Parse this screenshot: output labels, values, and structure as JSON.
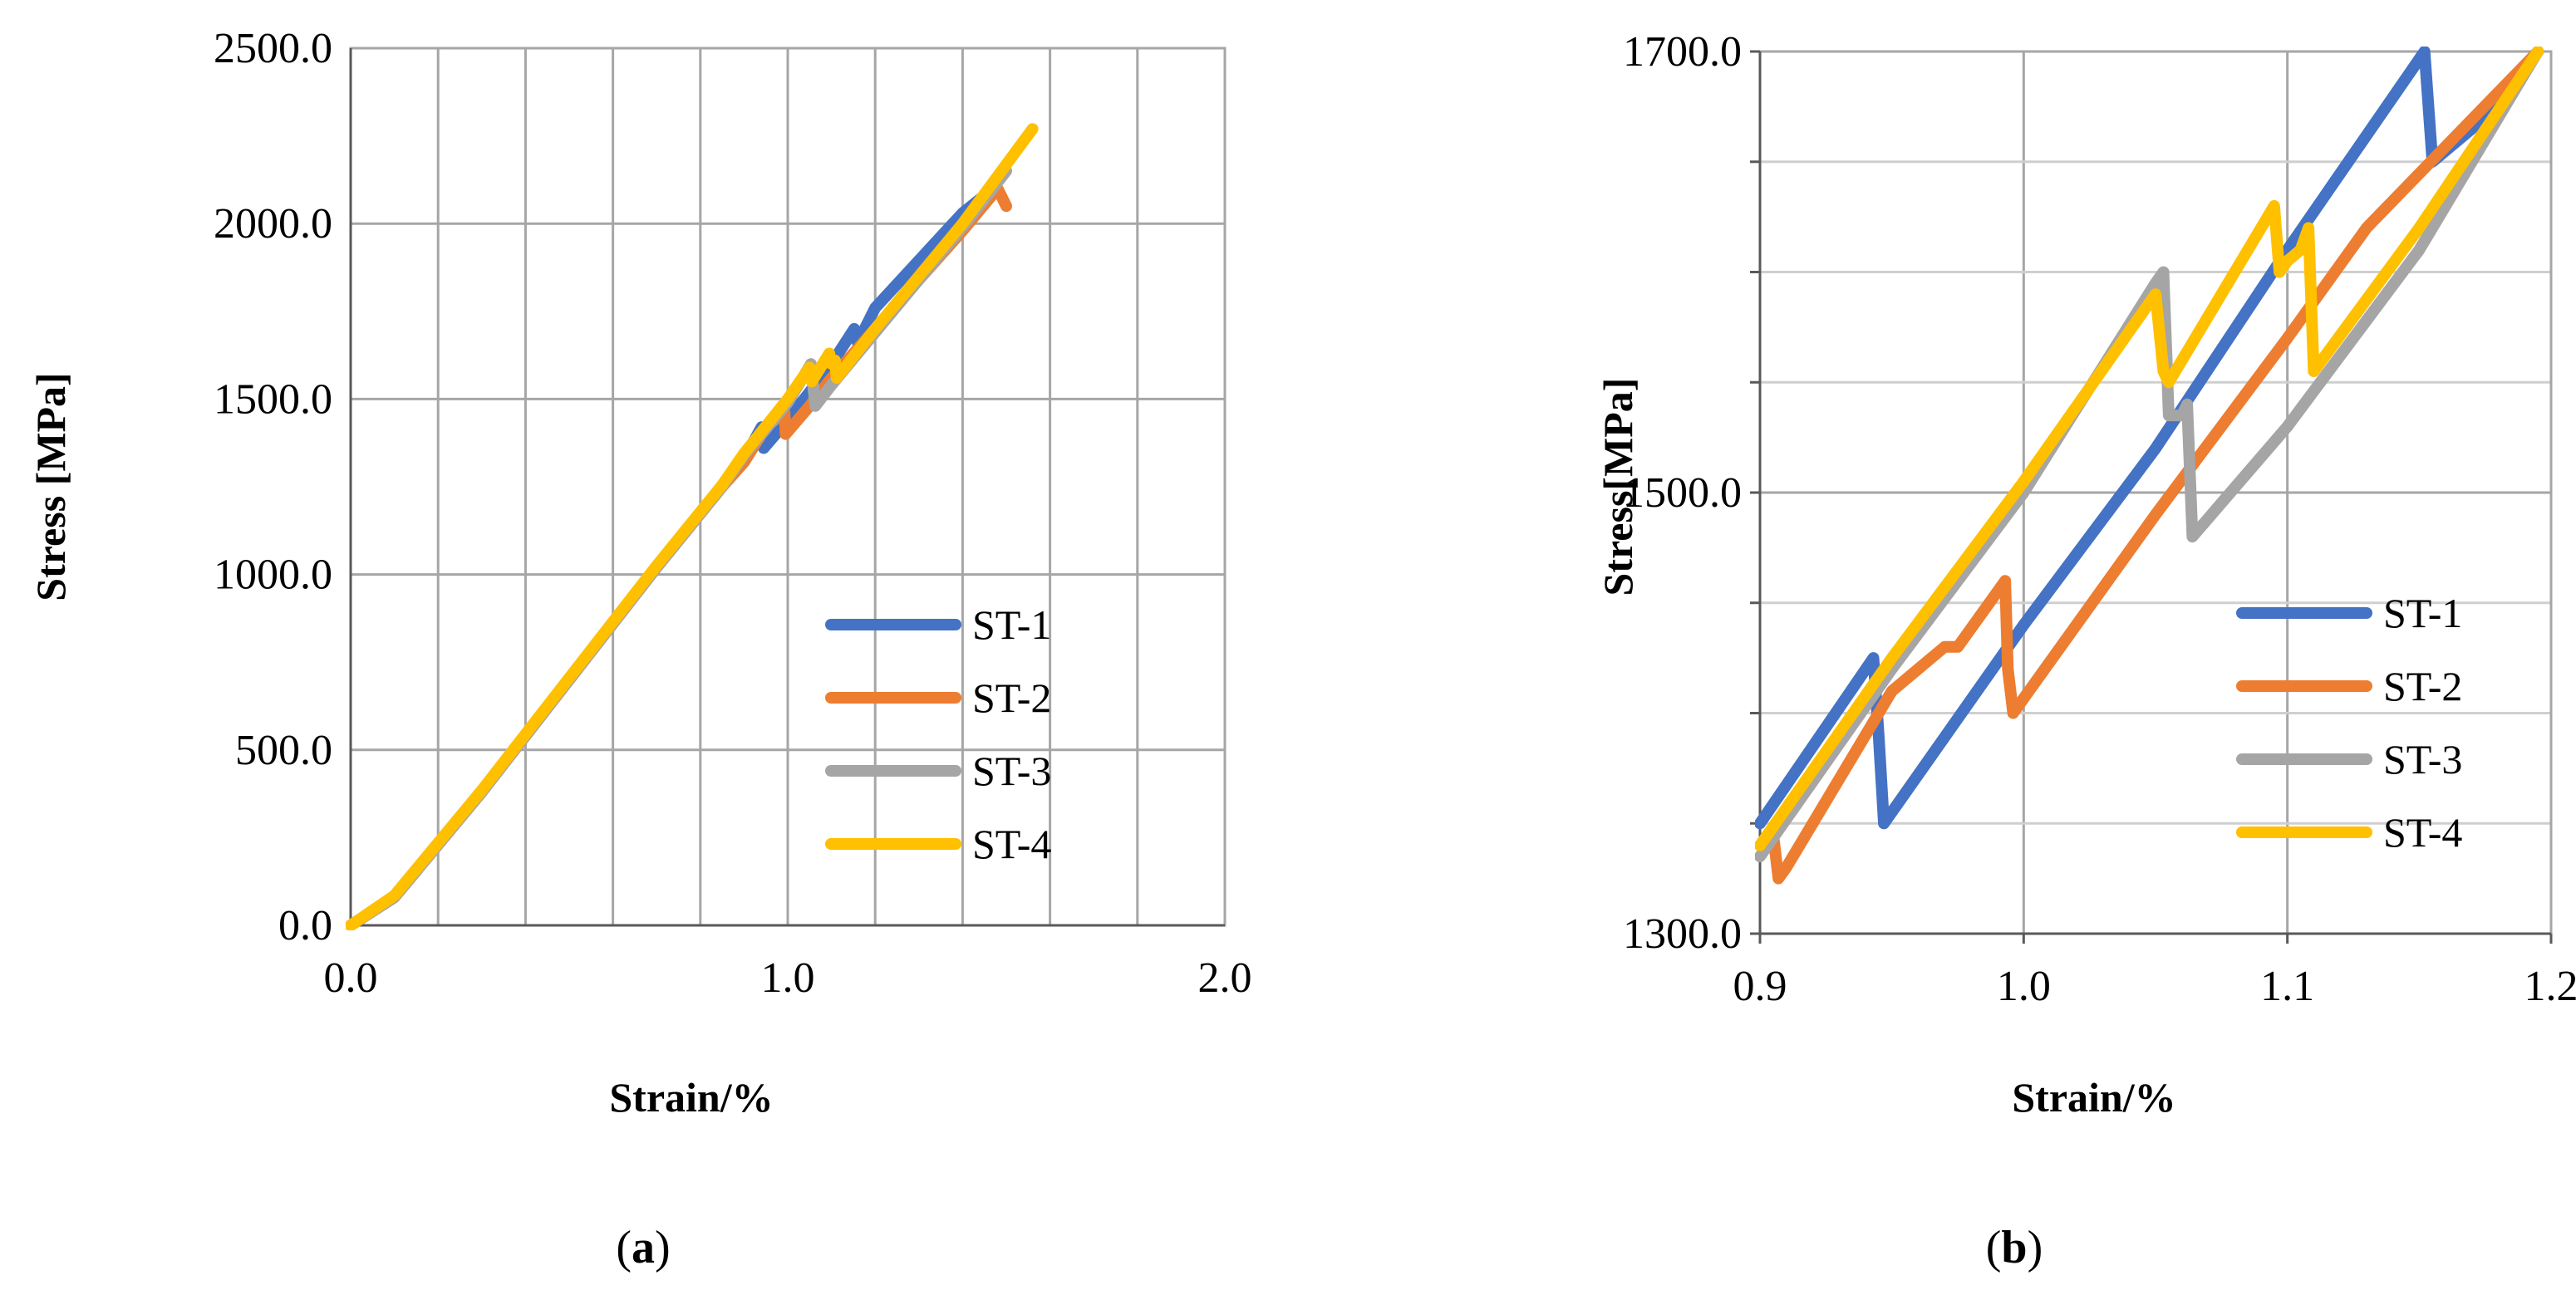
{
  "chart_data": [
    {
      "type": "line",
      "panel": "a",
      "caption": "a",
      "xlabel": "Strain/%",
      "ylabel": "Stress [MPa]",
      "xlim": [
        0.0,
        2.0
      ],
      "ylim": [
        0.0,
        2500.0
      ],
      "xticks": [
        "0.0",
        "1.0",
        "2.0"
      ],
      "yticks": [
        "0.0",
        "500.0",
        "1000.0",
        "1500.0",
        "2000.0",
        "2500.0"
      ],
      "x_minor_step": 0.2,
      "y_grid_step": 500.0,
      "legend_position": "bottom-right",
      "series": [
        {
          "name": "ST-1",
          "color": "#4472C4",
          "x": [
            0.0,
            0.1,
            0.3,
            0.5,
            0.7,
            0.85,
            0.9,
            0.94,
            0.945,
            1.0,
            1.05,
            1.1,
            1.152,
            1.16,
            1.2,
            1.4,
            1.47
          ],
          "y": [
            0,
            80,
            380,
            700,
            1020,
            1250,
            1330,
            1420,
            1360,
            1440,
            1520,
            1600,
            1700,
            1660,
            1760,
            2030,
            2100
          ]
        },
        {
          "name": "ST-2",
          "color": "#ED7D31",
          "x": [
            0.0,
            0.1,
            0.3,
            0.5,
            0.7,
            0.85,
            0.9,
            0.95,
            0.97,
            0.993,
            0.995,
            1.05,
            1.1,
            1.2,
            1.4,
            1.48,
            1.5
          ],
          "y": [
            0,
            80,
            380,
            700,
            1020,
            1250,
            1320,
            1420,
            1440,
            1460,
            1400,
            1480,
            1560,
            1700,
            1980,
            2100,
            2050
          ]
        },
        {
          "name": "ST-3",
          "color": "#A5A5A5",
          "x": [
            0.0,
            0.1,
            0.3,
            0.5,
            0.7,
            0.85,
            0.9,
            1.0,
            1.053,
            1.058,
            1.063,
            1.1,
            1.2,
            1.4,
            1.5
          ],
          "y": [
            0,
            80,
            380,
            700,
            1020,
            1250,
            1340,
            1490,
            1600,
            1540,
            1480,
            1540,
            1690,
            1990,
            2150
          ]
        },
        {
          "name": "ST-4",
          "color": "#FFC000",
          "x": [
            0.0,
            0.1,
            0.3,
            0.5,
            0.7,
            0.85,
            0.9,
            1.0,
            1.05,
            1.055,
            1.095,
            1.1,
            1.108,
            1.112,
            1.2,
            1.4,
            1.56
          ],
          "y": [
            0,
            85,
            385,
            705,
            1025,
            1255,
            1345,
            1500,
            1590,
            1550,
            1630,
            1600,
            1610,
            1560,
            1700,
            2000,
            2270
          ]
        }
      ]
    },
    {
      "type": "line",
      "panel": "b",
      "caption": "b",
      "xlabel": "Strain/%",
      "ylabel": "Stress[MPa]",
      "xlim": [
        0.9,
        1.2
      ],
      "ylim": [
        1300.0,
        1700.0
      ],
      "xticks": [
        "0.9",
        "1.0",
        "1.1",
        "1.2"
      ],
      "yticks": [
        "1300.0",
        "1500.0",
        "1700.0"
      ],
      "y_minor_step": 50.0,
      "legend_position": "bottom-right",
      "series": [
        {
          "name": "ST-1",
          "color": "#4472C4",
          "x": [
            0.9,
            0.943,
            0.945,
            0.947,
            1.0,
            1.05,
            1.1,
            1.152,
            1.155,
            1.17,
            1.195
          ],
          "y": [
            1350,
            1425,
            1390,
            1350,
            1440,
            1520,
            1610,
            1700,
            1650,
            1665,
            1700
          ]
        },
        {
          "name": "ST-2",
          "color": "#ED7D31",
          "x": [
            0.9,
            0.905,
            0.907,
            0.91,
            0.95,
            0.97,
            0.975,
            0.993,
            0.994,
            0.996,
            1.05,
            1.1,
            1.13,
            1.195
          ],
          "y": [
            1340,
            1345,
            1325,
            1330,
            1410,
            1430,
            1430,
            1460,
            1420,
            1400,
            1490,
            1570,
            1620,
            1700
          ]
        },
        {
          "name": "ST-3",
          "color": "#A5A5A5",
          "x": [
            0.9,
            0.95,
            1.0,
            1.05,
            1.053,
            1.055,
            1.06,
            1.062,
            1.064,
            1.1,
            1.15,
            1.195
          ],
          "y": [
            1335,
            1420,
            1500,
            1595,
            1600,
            1535,
            1535,
            1540,
            1480,
            1530,
            1610,
            1700
          ]
        },
        {
          "name": "ST-4",
          "color": "#FFC000",
          "x": [
            0.9,
            0.95,
            1.0,
            1.05,
            1.053,
            1.055,
            1.095,
            1.097,
            1.1,
            1.105,
            1.108,
            1.11,
            1.15,
            1.195
          ],
          "y": [
            1340,
            1425,
            1505,
            1590,
            1555,
            1550,
            1630,
            1600,
            1605,
            1610,
            1620,
            1555,
            1620,
            1700
          ]
        }
      ]
    }
  ]
}
